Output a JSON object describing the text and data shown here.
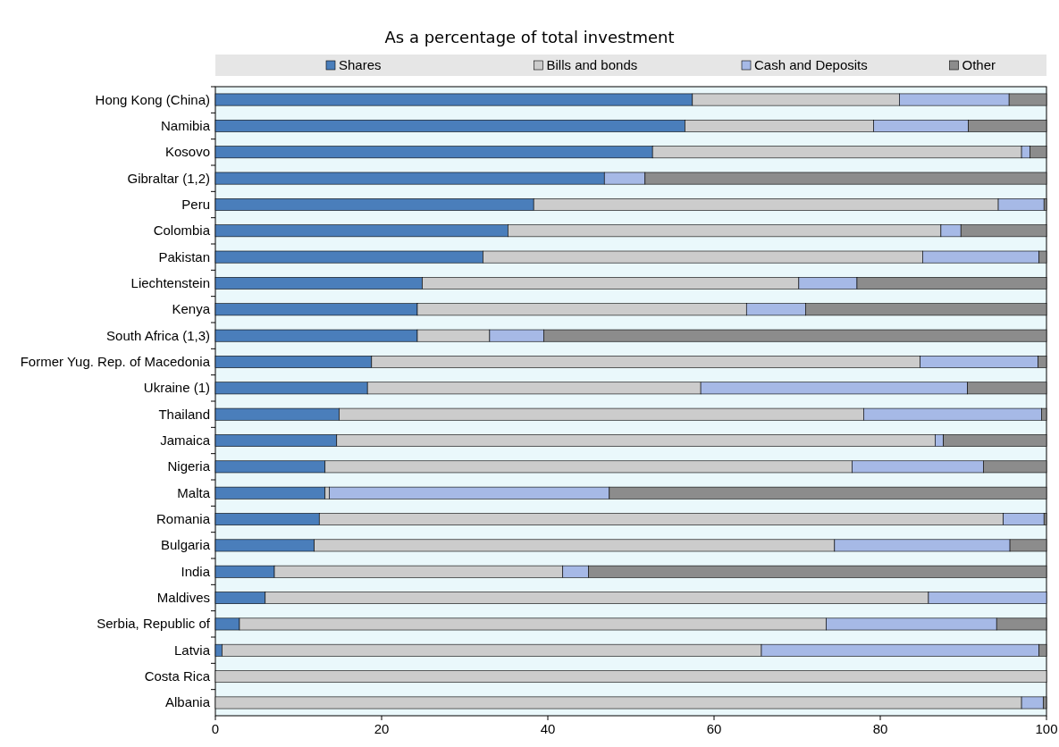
{
  "chart_data": {
    "type": "bar",
    "orientation": "horizontal",
    "stacked": true,
    "title": "As a percentage of total investment",
    "categories": [
      "Hong Kong (China)",
      "Namibia",
      "Kosovo",
      "Gibraltar (1,2)",
      "Peru",
      "Colombia",
      "Pakistan",
      "Liechtenstein",
      "Kenya",
      "South Africa (1,3)",
      "Former Yug. Rep. of Macedonia",
      "Ukraine (1)",
      "Thailand",
      "Jamaica",
      "Nigeria",
      "Malta",
      "Romania",
      "Bulgaria",
      "India",
      "Maldives",
      "Serbia, Republic of",
      "Latvia",
      "Costa Rica",
      "Albania"
    ],
    "series": [
      {
        "name": "Shares",
        "color": "#4a7ebb",
        "values": [
          57.4,
          56.5,
          52.6,
          46.8,
          38.3,
          35.2,
          32.2,
          24.9,
          24.3,
          24.3,
          18.8,
          18.3,
          14.9,
          14.6,
          13.2,
          13.2,
          12.5,
          11.9,
          7.1,
          6.0,
          2.9,
          0.8,
          0,
          0
        ]
      },
      {
        "name": "Bills and bonds",
        "color": "#cccccc",
        "values": [
          24.9,
          22.7,
          44.4,
          0,
          55.9,
          52.1,
          52.9,
          45.3,
          39.6,
          8.7,
          66.0,
          40.1,
          63.1,
          72.0,
          63.4,
          0.5,
          82.3,
          62.6,
          34.7,
          79.8,
          70.6,
          64.9,
          100,
          97.0
        ]
      },
      {
        "name": "Cash and Deposits",
        "color": "#a6b9e6",
        "values": [
          13.2,
          11.4,
          1.0,
          4.9,
          5.5,
          2.4,
          14.0,
          7.0,
          7.1,
          6.5,
          14.2,
          32.1,
          21.4,
          1.0,
          15.8,
          33.7,
          4.9,
          21.1,
          3.1,
          14.2,
          20.5,
          33.4,
          0,
          2.6
        ]
      },
      {
        "name": "Other",
        "color": "#8c8c8c",
        "values": [
          4.5,
          9.4,
          2.0,
          48.3,
          0.3,
          10.3,
          0.9,
          22.8,
          29.0,
          60.5,
          1.0,
          9.5,
          0.6,
          12.4,
          7.6,
          52.6,
          0.3,
          4.4,
          55.1,
          0,
          6.0,
          0.9,
          0,
          0.4
        ]
      }
    ],
    "xlim": [
      0,
      100
    ],
    "xticks": [
      0,
      20,
      40,
      60,
      80,
      100
    ],
    "legend": "top",
    "grid": false
  }
}
